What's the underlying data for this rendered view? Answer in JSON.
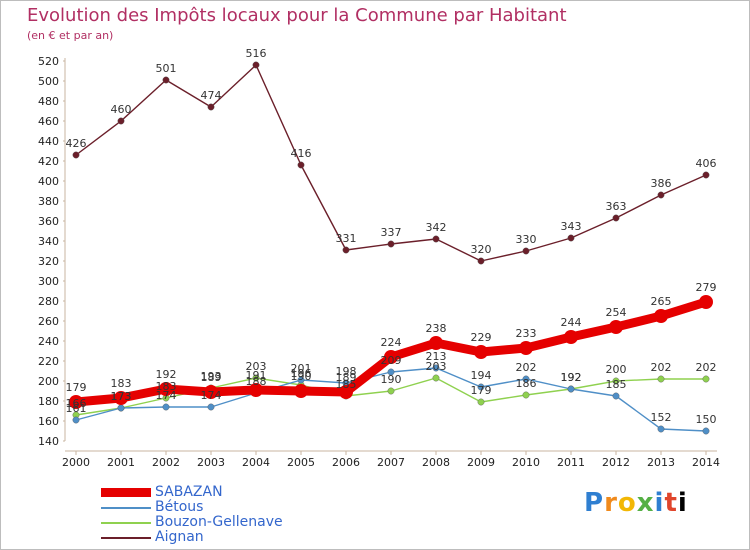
{
  "title": "Evolution des Impôts locaux pour la Commune par Habitant",
  "subtitle": "(en € et par an)",
  "logo_text": "Proxiti",
  "chart_data": {
    "type": "line",
    "x": [
      "2000",
      "2001",
      "2002",
      "2003",
      "2004",
      "2005",
      "2006",
      "2007",
      "2008",
      "2009",
      "2010",
      "2011",
      "2012",
      "2013",
      "2014"
    ],
    "ylim": [
      140,
      520
    ],
    "yticks": [
      140,
      160,
      180,
      200,
      220,
      240,
      260,
      280,
      300,
      320,
      340,
      360,
      380,
      400,
      420,
      440,
      460,
      480,
      500,
      520
    ],
    "grid": false,
    "legend_position": "bottom-left",
    "series": [
      {
        "name": "SABAZAN",
        "color": "#e50000",
        "values": [
          179,
          183,
          192,
          189,
          191,
          190,
          189,
          224,
          238,
          229,
          233,
          244,
          254,
          265,
          279
        ],
        "labels": [
          "179",
          "183",
          "192",
          "189",
          "191",
          "190",
          "189",
          "224",
          "238",
          "229",
          "233",
          "244",
          "254",
          "265",
          "279"
        ]
      },
      {
        "name": "Bétous",
        "color": "#4f8fc7",
        "values": [
          161,
          173,
          174,
          174,
          188,
          201,
          198,
          209,
          213,
          194,
          202,
          192,
          185,
          152,
          150
        ],
        "labels": [
          "161",
          "173",
          "174",
          "174",
          "188",
          "201",
          "198",
          "209",
          "213",
          "194",
          "202",
          "192",
          "185",
          "152",
          "150"
        ]
      },
      {
        "name": "Bouzon-Gellenave",
        "color": "#8fd14f",
        "values": [
          166,
          173,
          183,
          193,
          203,
          196,
          185,
          190,
          203,
          179,
          186,
          192,
          200,
          202,
          202
        ],
        "labels": [
          "166",
          "173",
          "183",
          "193",
          "203",
          "196",
          "185",
          "190",
          "203",
          "179",
          "186",
          "192",
          "200",
          "202",
          "202"
        ]
      },
      {
        "name": "Aignan",
        "color": "#6b1f2a",
        "values": [
          426,
          460,
          501,
          474,
          516,
          416,
          331,
          337,
          342,
          320,
          330,
          343,
          363,
          386,
          406
        ],
        "labels": [
          "426",
          "460",
          "501",
          "474",
          "516",
          "416",
          "331",
          "337",
          "342",
          "320",
          "330",
          "343",
          "363",
          "386",
          "406"
        ]
      }
    ]
  }
}
